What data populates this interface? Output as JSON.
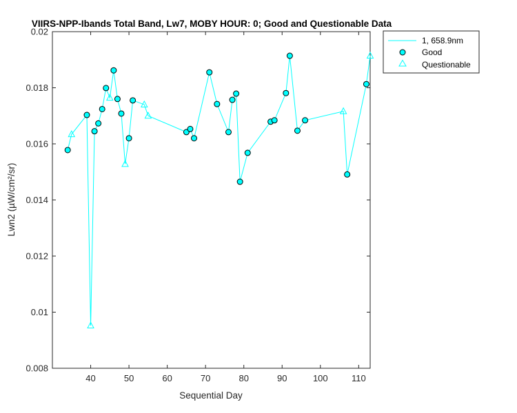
{
  "chart_data": {
    "type": "line",
    "title": "VIIRS-NPP-Ibands Total Band, Lw7, MOBY HOUR: 0;  Good and Questionable Data",
    "xlabel": "Sequential Day",
    "ylabel": "Lwn2 (µW/cm²/sr)",
    "xlim": [
      30,
      113
    ],
    "ylim": [
      0.008,
      0.02
    ],
    "xticks": [
      40,
      50,
      60,
      70,
      80,
      90,
      100,
      110
    ],
    "yticks": [
      0.008,
      0.01,
      0.012,
      0.014,
      0.016,
      0.018,
      0.02
    ],
    "ytick_labels": [
      "0.008",
      "0.01",
      "0.012",
      "0.014",
      "0.016",
      "0.018",
      "0.02"
    ],
    "grid": false,
    "legend_position": "outside top-right",
    "colors": {
      "series": "#00ffff",
      "marker_edge": "#000000",
      "axis": "#262626"
    },
    "series": [
      {
        "name": "1, 658.9nm",
        "kind": "line",
        "x": [
          34,
          35,
          39,
          40,
          41,
          42,
          43,
          44,
          45,
          46,
          47,
          48,
          49,
          50,
          51,
          54,
          55,
          65,
          66,
          67,
          71,
          73,
          76,
          77,
          78,
          79,
          81,
          87,
          88,
          91,
          92,
          94,
          96,
          106,
          107,
          112,
          113
        ],
        "y": [
          0.01578,
          0.01634,
          0.01703,
          0.00952,
          0.01645,
          0.01673,
          0.01724,
          0.01799,
          0.01764,
          0.01862,
          0.0176,
          0.01708,
          0.01528,
          0.0162,
          0.01755,
          0.0174,
          0.017,
          0.01642,
          0.01653,
          0.0162,
          0.01855,
          0.01742,
          0.01642,
          0.01757,
          0.01779,
          0.01465,
          0.01568,
          0.01679,
          0.01684,
          0.01781,
          0.01914,
          0.01647,
          0.01684,
          0.01716,
          0.01491,
          0.01813,
          0.01914
        ]
      },
      {
        "name": "Good",
        "kind": "marker-circle",
        "x": [
          34,
          39,
          41,
          42,
          43,
          44,
          46,
          47,
          48,
          50,
          51,
          65,
          66,
          67,
          71,
          73,
          76,
          77,
          78,
          79,
          81,
          87,
          88,
          91,
          92,
          94,
          96,
          107,
          112
        ],
        "y": [
          0.01578,
          0.01703,
          0.01645,
          0.01673,
          0.01724,
          0.01799,
          0.01862,
          0.0176,
          0.01708,
          0.0162,
          0.01755,
          0.01642,
          0.01653,
          0.0162,
          0.01855,
          0.01742,
          0.01642,
          0.01757,
          0.01779,
          0.01465,
          0.01568,
          0.01679,
          0.01684,
          0.01781,
          0.01914,
          0.01647,
          0.01684,
          0.01491,
          0.01813
        ]
      },
      {
        "name": "Questionable",
        "kind": "marker-triangle",
        "x": [
          35,
          40,
          45,
          49,
          54,
          55,
          106,
          113
        ],
        "y": [
          0.01634,
          0.00952,
          0.01764,
          0.01528,
          0.0174,
          0.017,
          0.01716,
          0.01914
        ]
      }
    ]
  }
}
